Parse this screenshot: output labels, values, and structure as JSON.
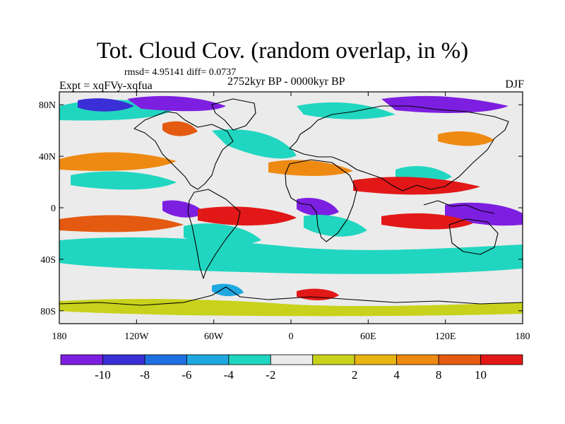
{
  "header": {
    "title": "Tot. Cloud Cov. (random overlap, in %)",
    "stats": "rmsd= 4.95141 diff= 0.0737",
    "experiment": "Expt = xqFVy-xqfua",
    "period": "2752kyr BP - 0000kyr BP",
    "season": "DJF"
  },
  "axes": {
    "y_ticks": [
      {
        "lat": 80,
        "label": "80N"
      },
      {
        "lat": 40,
        "label": "40N"
      },
      {
        "lat": 0,
        "label": "0"
      },
      {
        "lat": -40,
        "label": "40S"
      },
      {
        "lat": -80,
        "label": "80S"
      }
    ],
    "x_ticks": [
      {
        "lon": -180,
        "label": "180"
      },
      {
        "lon": -120,
        "label": "120W"
      },
      {
        "lon": -60,
        "label": "60W"
      },
      {
        "lon": 0,
        "label": "0"
      },
      {
        "lon": 60,
        "label": "60E"
      },
      {
        "lon": 120,
        "label": "120E"
      },
      {
        "lon": 180,
        "label": "180"
      }
    ],
    "lon_range": [
      -180,
      180
    ],
    "lat_range": [
      -90,
      90
    ]
  },
  "colorbar": {
    "colors": [
      "#7d1fe0",
      "#3a2fd6",
      "#1e6fe0",
      "#1fa8e0",
      "#21d6c0",
      "#ebebeb",
      "#c8d21c",
      "#e8b414",
      "#ee8a12",
      "#e45a10",
      "#e21818"
    ],
    "labels": [
      "-10",
      "-8",
      "-6",
      "-4",
      "-2",
      "2",
      "4",
      "8",
      "10"
    ]
  },
  "field_colors": {
    "neutral": "#ebebeb",
    "coast": "#000000"
  }
}
